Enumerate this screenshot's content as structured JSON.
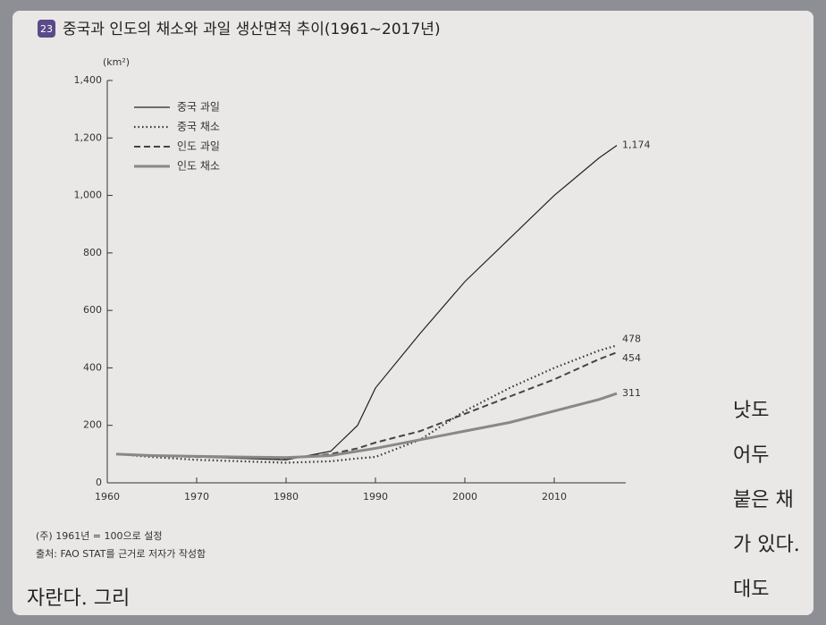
{
  "chart_data": {
    "type": "line",
    "badge": "23",
    "title": "중국과 인도의 채소와 과일 생산면적 추이(1961~2017년)",
    "y_unit": "(km²)",
    "x": [
      1961,
      1965,
      1970,
      1975,
      1980,
      1985,
      1988,
      1990,
      1995,
      2000,
      2005,
      2010,
      2015,
      2017
    ],
    "series": [
      {
        "name": "중국 과일",
        "color": "#222222",
        "style": "solid",
        "values": [
          100,
          95,
          90,
          85,
          80,
          110,
          200,
          330,
          520,
          700,
          850,
          1000,
          1130,
          1174
        ],
        "value_labels": [
          null,
          null,
          null,
          null,
          null,
          null,
          null,
          null,
          null,
          null,
          null,
          null,
          null,
          "1,174"
        ]
      },
      {
        "name": "중국 채소",
        "color": "#333333",
        "style": "dotted",
        "values": [
          100,
          90,
          80,
          75,
          70,
          75,
          85,
          90,
          150,
          250,
          330,
          400,
          460,
          478
        ],
        "value_labels": [
          null,
          null,
          null,
          null,
          null,
          null,
          null,
          null,
          null,
          null,
          null,
          null,
          null,
          "478"
        ]
      },
      {
        "name": "인도 과일",
        "color": "#444444",
        "style": "dashed",
        "values": [
          100,
          95,
          90,
          88,
          85,
          100,
          120,
          140,
          180,
          240,
          300,
          360,
          430,
          454
        ],
        "value_labels": [
          null,
          null,
          null,
          null,
          null,
          null,
          null,
          null,
          null,
          null,
          null,
          null,
          null,
          "454"
        ]
      },
      {
        "name": "인도 채소",
        "color": "#888888",
        "style": "thick",
        "values": [
          100,
          95,
          92,
          90,
          88,
          95,
          110,
          120,
          150,
          180,
          210,
          250,
          290,
          311
        ],
        "value_labels": [
          null,
          null,
          null,
          null,
          null,
          null,
          null,
          null,
          null,
          null,
          null,
          null,
          null,
          "311"
        ]
      }
    ],
    "xlim": [
      1960,
      2018
    ],
    "xticks": [
      1960,
      1970,
      1980,
      1990,
      2000,
      2010
    ],
    "ylim": [
      0,
      1400
    ],
    "yticks": [
      0,
      200,
      400,
      600,
      800,
      {
        "value": 1000,
        "label": "1,000"
      },
      {
        "value": 1200,
        "label": "1,200"
      },
      {
        "value": 1400,
        "label": "1,400"
      }
    ],
    "note": "(주) 1961년 = 100으로 설정",
    "source": "출처: FAO STAT를 근거로 저자가 작성함"
  },
  "page_text": [
    "자란다. 그리",
    "낫도",
    "어두",
    "붙은 채",
    "가 있다.",
    "대도"
  ]
}
